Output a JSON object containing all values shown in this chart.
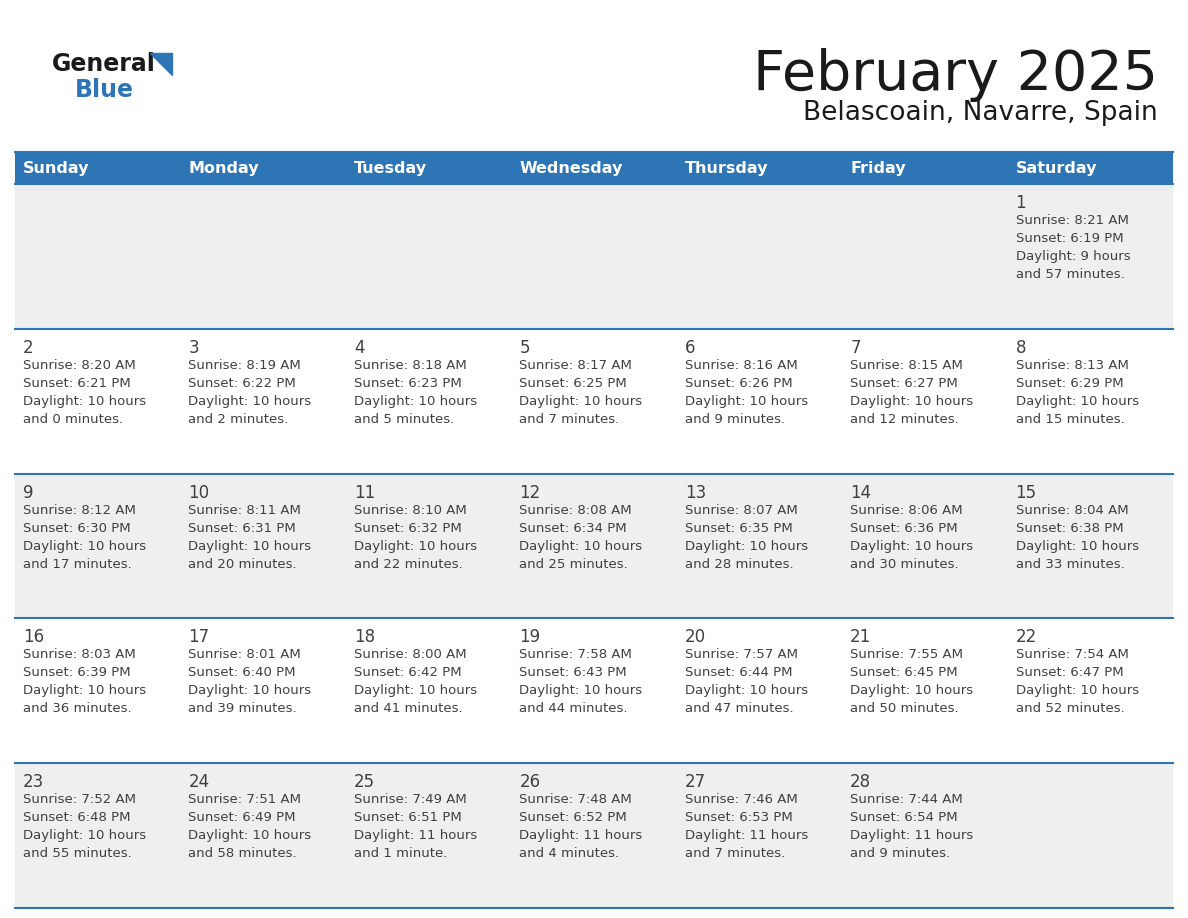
{
  "title": "February 2025",
  "subtitle": "Belascoain, Navarre, Spain",
  "days_of_week": [
    "Sunday",
    "Monday",
    "Tuesday",
    "Wednesday",
    "Thursday",
    "Friday",
    "Saturday"
  ],
  "header_bg": "#2E75B6",
  "header_text": "#FFFFFF",
  "cell_bg_odd": "#EFEFEF",
  "cell_bg_even": "#FFFFFF",
  "text_color": "#404040",
  "day_num_color": "#404040",
  "line_color": "#2E75B6",
  "calendar": [
    [
      null,
      null,
      null,
      null,
      null,
      null,
      {
        "day": "1",
        "sunrise": "8:21 AM",
        "sunset": "6:19 PM",
        "daylight": "9 hours\nand 57 minutes."
      }
    ],
    [
      {
        "day": "2",
        "sunrise": "8:20 AM",
        "sunset": "6:21 PM",
        "daylight": "10 hours\nand 0 minutes."
      },
      {
        "day": "3",
        "sunrise": "8:19 AM",
        "sunset": "6:22 PM",
        "daylight": "10 hours\nand 2 minutes."
      },
      {
        "day": "4",
        "sunrise": "8:18 AM",
        "sunset": "6:23 PM",
        "daylight": "10 hours\nand 5 minutes."
      },
      {
        "day": "5",
        "sunrise": "8:17 AM",
        "sunset": "6:25 PM",
        "daylight": "10 hours\nand 7 minutes."
      },
      {
        "day": "6",
        "sunrise": "8:16 AM",
        "sunset": "6:26 PM",
        "daylight": "10 hours\nand 9 minutes."
      },
      {
        "day": "7",
        "sunrise": "8:15 AM",
        "sunset": "6:27 PM",
        "daylight": "10 hours\nand 12 minutes."
      },
      {
        "day": "8",
        "sunrise": "8:13 AM",
        "sunset": "6:29 PM",
        "daylight": "10 hours\nand 15 minutes."
      }
    ],
    [
      {
        "day": "9",
        "sunrise": "8:12 AM",
        "sunset": "6:30 PM",
        "daylight": "10 hours\nand 17 minutes."
      },
      {
        "day": "10",
        "sunrise": "8:11 AM",
        "sunset": "6:31 PM",
        "daylight": "10 hours\nand 20 minutes."
      },
      {
        "day": "11",
        "sunrise": "8:10 AM",
        "sunset": "6:32 PM",
        "daylight": "10 hours\nand 22 minutes."
      },
      {
        "day": "12",
        "sunrise": "8:08 AM",
        "sunset": "6:34 PM",
        "daylight": "10 hours\nand 25 minutes."
      },
      {
        "day": "13",
        "sunrise": "8:07 AM",
        "sunset": "6:35 PM",
        "daylight": "10 hours\nand 28 minutes."
      },
      {
        "day": "14",
        "sunrise": "8:06 AM",
        "sunset": "6:36 PM",
        "daylight": "10 hours\nand 30 minutes."
      },
      {
        "day": "15",
        "sunrise": "8:04 AM",
        "sunset": "6:38 PM",
        "daylight": "10 hours\nand 33 minutes."
      }
    ],
    [
      {
        "day": "16",
        "sunrise": "8:03 AM",
        "sunset": "6:39 PM",
        "daylight": "10 hours\nand 36 minutes."
      },
      {
        "day": "17",
        "sunrise": "8:01 AM",
        "sunset": "6:40 PM",
        "daylight": "10 hours\nand 39 minutes."
      },
      {
        "day": "18",
        "sunrise": "8:00 AM",
        "sunset": "6:42 PM",
        "daylight": "10 hours\nand 41 minutes."
      },
      {
        "day": "19",
        "sunrise": "7:58 AM",
        "sunset": "6:43 PM",
        "daylight": "10 hours\nand 44 minutes."
      },
      {
        "day": "20",
        "sunrise": "7:57 AM",
        "sunset": "6:44 PM",
        "daylight": "10 hours\nand 47 minutes."
      },
      {
        "day": "21",
        "sunrise": "7:55 AM",
        "sunset": "6:45 PM",
        "daylight": "10 hours\nand 50 minutes."
      },
      {
        "day": "22",
        "sunrise": "7:54 AM",
        "sunset": "6:47 PM",
        "daylight": "10 hours\nand 52 minutes."
      }
    ],
    [
      {
        "day": "23",
        "sunrise": "7:52 AM",
        "sunset": "6:48 PM",
        "daylight": "10 hours\nand 55 minutes."
      },
      {
        "day": "24",
        "sunrise": "7:51 AM",
        "sunset": "6:49 PM",
        "daylight": "10 hours\nand 58 minutes."
      },
      {
        "day": "25",
        "sunrise": "7:49 AM",
        "sunset": "6:51 PM",
        "daylight": "11 hours\nand 1 minute."
      },
      {
        "day": "26",
        "sunrise": "7:48 AM",
        "sunset": "6:52 PM",
        "daylight": "11 hours\nand 4 minutes."
      },
      {
        "day": "27",
        "sunrise": "7:46 AM",
        "sunset": "6:53 PM",
        "daylight": "11 hours\nand 7 minutes."
      },
      {
        "day": "28",
        "sunrise": "7:44 AM",
        "sunset": "6:54 PM",
        "daylight": "11 hours\nand 9 minutes."
      },
      null
    ]
  ]
}
